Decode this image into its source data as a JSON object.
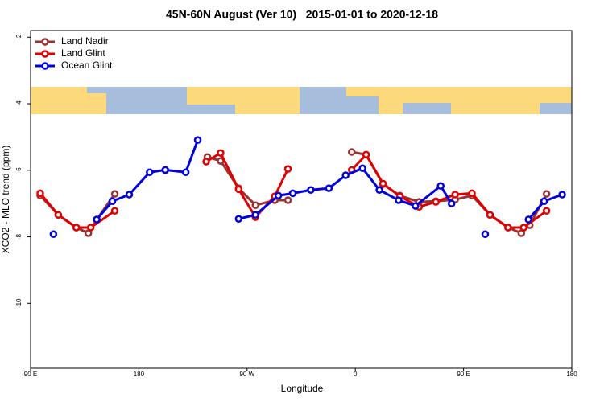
{
  "chart_data": {
    "type": "line",
    "title": "45N-60N August (Ver 10)   2015-01-01 to 2020-12-18",
    "xlabel": "Longitude",
    "ylabel": "XCO2 - MLO trend (ppm)",
    "xlim": [
      90,
      540
    ],
    "ylim": [
      -11.95,
      -1.8
    ],
    "xticks": [
      {
        "value": 90,
        "label": "90 E"
      },
      180,
      {
        "value": 270,
        "label": "90 W"
      },
      {
        "value": 360,
        "label": "0"
      },
      {
        "value": 450,
        "label": "90 E"
      },
      {
        "value": 540,
        "label": "180"
      }
    ],
    "yticks": [
      -2,
      -4,
      -6,
      -8,
      -10
    ],
    "legend": "top-left",
    "series": [
      {
        "name": "Land Nadir",
        "color": "#993333",
        "x": [
          98,
          113,
          128,
          138,
          145,
          160,
          null,
          237,
          248,
          263,
          277,
          293,
          304,
          null,
          357,
          369,
          383,
          397,
          413,
          427,
          443,
          457,
          472,
          487,
          498,
          505,
          519
        ],
        "values": [
          -6.76,
          -7.34,
          -7.72,
          -7.89,
          -7.48,
          -6.71,
          null,
          -5.6,
          -5.72,
          -6.54,
          -7.05,
          -6.9,
          -6.9,
          null,
          -5.45,
          -5.53,
          -6.42,
          -6.76,
          -6.95,
          -6.93,
          -6.88,
          -6.76,
          -7.34,
          -7.72,
          -7.89,
          -7.65,
          -6.71
        ]
      },
      {
        "name": "Land Glint",
        "color": "#e00000",
        "x": [
          98,
          113,
          128,
          140,
          160,
          null,
          202,
          null,
          236,
          248,
          263,
          277,
          293,
          304,
          null,
          357,
          369,
          383,
          397,
          413,
          427,
          443,
          457,
          472,
          487,
          500,
          519
        ],
        "values": [
          -6.69,
          -7.34,
          -7.72,
          -7.72,
          -7.22,
          null,
          -6.0,
          null,
          -5.74,
          -5.48,
          -6.57,
          -7.41,
          -6.78,
          -5.96,
          null,
          -5.99,
          -5.53,
          -6.4,
          -6.78,
          -7.1,
          -6.95,
          -6.73,
          -6.69,
          -7.34,
          -7.72,
          -7.72,
          -7.22
        ]
      },
      {
        "name": "Ocean Glint",
        "color": "#0000dd",
        "x": [
          109,
          null,
          145,
          158,
          172,
          189,
          202,
          219,
          229,
          null,
          263,
          277,
          296,
          308,
          323,
          338,
          352,
          366,
          380,
          396,
          410,
          431,
          440,
          null,
          468,
          null,
          504,
          517,
          532
        ],
        "values": [
          -7.92,
          null,
          -7.48,
          -6.93,
          -6.73,
          -6.06,
          -5.99,
          -6.06,
          -5.09,
          null,
          -7.46,
          -7.34,
          -6.76,
          -6.69,
          -6.59,
          -6.54,
          -6.15,
          -5.94,
          -6.59,
          -6.9,
          -7.07,
          -6.47,
          -7.0,
          null,
          -7.92,
          null,
          -7.48,
          -6.93,
          -6.73
        ]
      }
    ]
  }
}
